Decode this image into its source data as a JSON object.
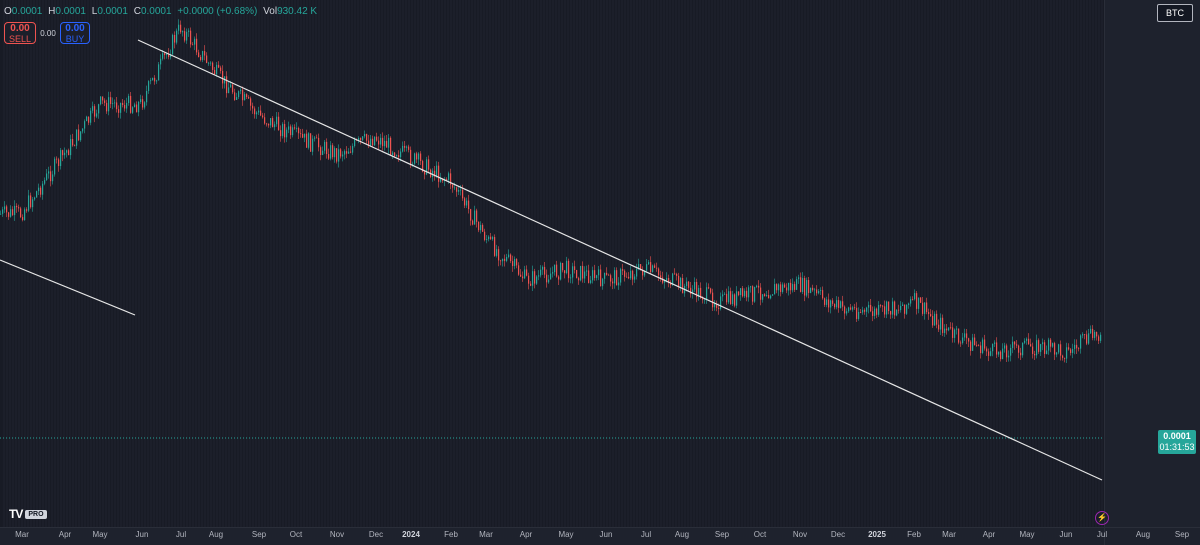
{
  "ohlc": {
    "o_label": "O",
    "o_value": "0.0001",
    "h_label": "H",
    "h_value": "0.0001",
    "l_label": "L",
    "l_value": "0.0001",
    "c_label": "C",
    "c_value": "0.0001",
    "change": "+0.0000 (+0.68%)",
    "vol_label": "Vol",
    "vol_value": "930.42 K"
  },
  "trade": {
    "sell_price": "0.00",
    "sell_label": "SELL",
    "spread": "0.00",
    "buy_price": "0.00",
    "buy_label": "BUY"
  },
  "symbol": "BTC",
  "last_price": {
    "price": "0.0001",
    "countdown": "01:31:53",
    "color": "#26a69a"
  },
  "logo": {
    "mark": "TV",
    "badge": "PRO"
  },
  "colors": {
    "up": "#26a69a",
    "down": "#ef5350",
    "trendline": "#e6e6e6",
    "background": "#181b25"
  },
  "time_axis": [
    "Mar",
    "Apr",
    "May",
    "Jun",
    "Jul",
    "Aug",
    "Sep",
    "Oct",
    "Nov",
    "Dec",
    "2024",
    "Feb",
    "Mar",
    "Apr",
    "May",
    "Jun",
    "Jul",
    "Aug",
    "Sep",
    "Oct",
    "Nov",
    "Dec",
    "2025",
    "Feb",
    "Mar",
    "Apr",
    "May",
    "Jun",
    "Jul",
    "Aug",
    "Sep"
  ],
  "chart_data": {
    "type": "line",
    "x": [
      "2023-03",
      "2023-04",
      "2023-05",
      "2023-06",
      "2023-07",
      "2023-08",
      "2023-09",
      "2023-10",
      "2023-11",
      "2023-12",
      "2024-01",
      "2024-02",
      "2024-03",
      "2024-04",
      "2024-05",
      "2024-06",
      "2024-07",
      "2024-08",
      "2024-09",
      "2024-10",
      "2024-11",
      "2024-12",
      "2025-01",
      "2025-02",
      "2025-03",
      "2025-04",
      "2025-05",
      "2025-06",
      "2025-07"
    ],
    "series": [
      {
        "values": [
          6.2e-05,
          7.2e-05,
          8.2e-05,
          8.2e-05,
          9.6e-05,
          8.7e-05,
          8e-05,
          7.6e-05,
          7.3e-05,
          7.6e-05,
          7.2e-05,
          6.8e-05,
          5.7e-05,
          5e-05,
          5.2e-05,
          5e-05,
          5.2e-05,
          4.9e-05,
          4.6e-05,
          4.8e-05,
          4.9e-05,
          4.5e-05,
          4.4e-05,
          4.6e-05,
          4e-05,
          3.7e-05,
          3.8e-05,
          3.7e-05,
          4.1e-05
        ]
      }
    ],
    "trendlines": 2,
    "grid": false
  }
}
